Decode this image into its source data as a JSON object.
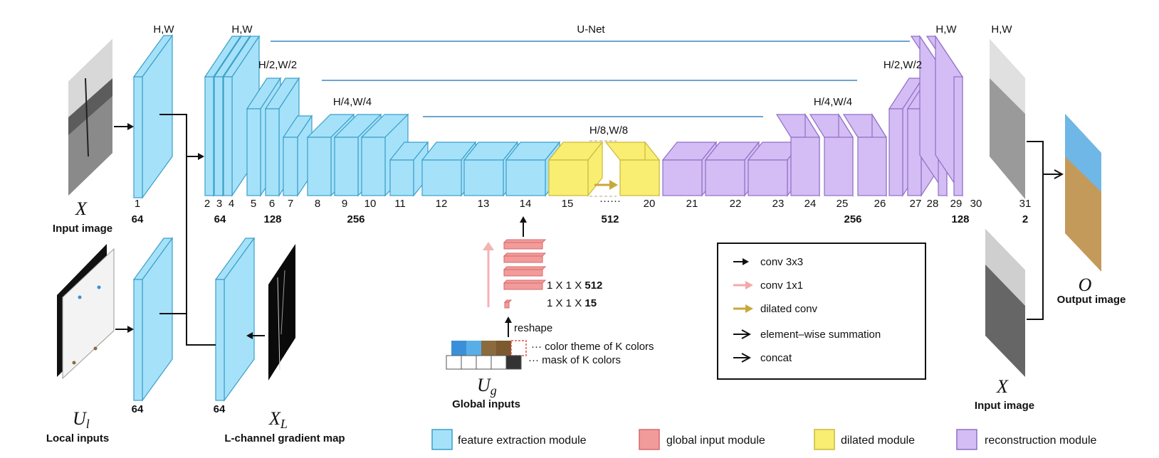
{
  "colors": {
    "feature": "#a6e1fa",
    "feature_edge": "#3a9fc8",
    "global": "#f29b9b",
    "global_edge": "#d66a6a",
    "dilated": "#f9ee72",
    "dilated_edge": "#c9b93c",
    "recon": "#d4bdf5",
    "recon_edge": "#8f6fc4",
    "unet_line": "#3e86c1"
  },
  "labels": {
    "unet": "U-Net",
    "hw": "H,W",
    "hw2": "H/2,W/2",
    "hw4": "H/4,W/4",
    "hw8": "H/8,W/8",
    "input_x": "X",
    "input_image": "Input image",
    "local_u": "U",
    "local_u_sub": "l",
    "local_inputs": "Local inputs",
    "lgrad_x": "X",
    "lgrad_sub": "L",
    "lgrad_label": "L-channel gradient map",
    "global_u": "U",
    "global_u_sub": "g",
    "global_inputs": "Global inputs",
    "output_o": "O",
    "output_image": "Output image",
    "input_x2": "X",
    "input_image2": "Input image",
    "reshape": "reshape",
    "color_theme": "color theme of K colors",
    "mask": "mask of K colors",
    "dim512_prefix": "1 X 1 X ",
    "dim512_bold": "512",
    "dim15_prefix": "1 X 1 X ",
    "dim15_bold": "15",
    "dots": "······",
    "ch_64a": "64",
    "ch_64b": "64",
    "ch_64c": "64",
    "ch_64d": "64",
    "ch_128a": "128",
    "ch_256a": "256",
    "ch_512": "512",
    "ch_256b": "256",
    "ch_128b": "128",
    "ch_2": "2"
  },
  "layer_numbers": [
    "1",
    "2",
    "3",
    "4",
    "5",
    "6",
    "7",
    "8",
    "9",
    "10",
    "11",
    "12",
    "13",
    "14",
    "15",
    "20",
    "21",
    "22",
    "23",
    "24",
    "25",
    "26",
    "27",
    "28",
    "29",
    "30",
    "31"
  ],
  "legend_arrows": [
    "conv 3x3",
    "conv 1x1",
    "dilated conv",
    "element–wise summation",
    "concat"
  ],
  "legend_modules": [
    "feature extraction module",
    "global input module",
    "dilated module",
    "reconstruction module"
  ],
  "palette": [
    "#3a8fd8",
    "#5aaee8",
    "#8b6a3e",
    "#7a5a2e"
  ]
}
